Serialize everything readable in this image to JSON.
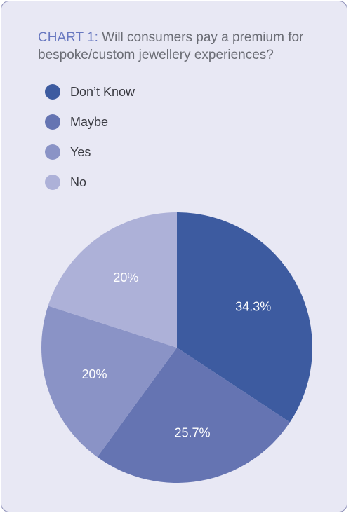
{
  "title_prefix": "CHART 1:",
  "title_text": "Will consumers pay a premium for bespoke/custom jewellery experiences?",
  "chart_data": {
    "type": "pie",
    "title": "CHART 1: Will consumers pay a premium for bespoke/custom jewellery experiences?",
    "categories": [
      "Don’t Know",
      "Maybe",
      "Yes",
      "No"
    ],
    "values": [
      34.3,
      25.7,
      20,
      20
    ],
    "labels": [
      "34.3%",
      "25.7%",
      "20%",
      "20%"
    ],
    "colors": [
      "#3d5ba0",
      "#6574b2",
      "#8a93c6",
      "#adb1d8"
    ],
    "legend_placement": "top-left",
    "start_angle": "12 o'clock",
    "direction": "clockwise"
  }
}
